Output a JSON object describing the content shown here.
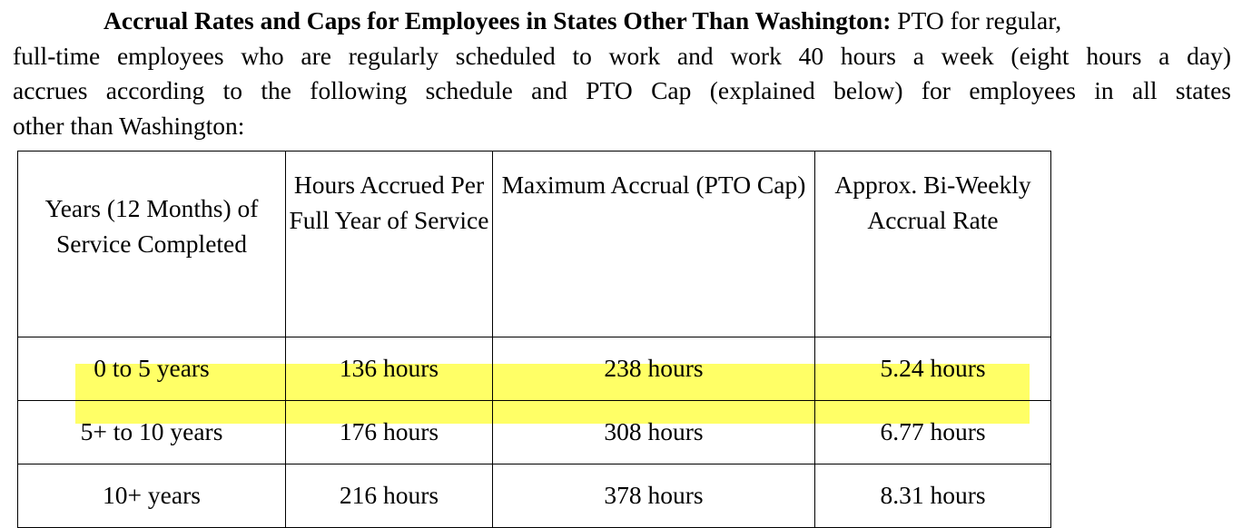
{
  "paragraph": {
    "heading": "Accrual Rates and Caps for Employees in States Other Than Washington:",
    "line1_rest": " PTO for regular,",
    "line2": "full-time employees who are regularly scheduled to work and work 40 hours a week (eight hours a day)",
    "line3": "accrues according to the following schedule and PTO Cap (explained below) for employees in all states",
    "line4": "other than Washington:"
  },
  "table": {
    "headers": [
      "Years (12 Months) of Service Completed",
      "Hours Accrued Per Full Year of Service",
      "Maximum Accrual (PTO Cap)",
      "Approx. Bi-Weekly Accrual Rate"
    ],
    "rows": [
      [
        "0 to 5 years",
        "136 hours",
        "238 hours",
        "5.24 hours"
      ],
      [
        "5+ to 10 years",
        "176 hours",
        "308 hours",
        "6.77 hours"
      ],
      [
        "10+ years",
        "216 hours",
        "378 hours",
        "8.31 hours"
      ]
    ],
    "highlighted_row": 1,
    "highlight_color": "#ffff66"
  }
}
